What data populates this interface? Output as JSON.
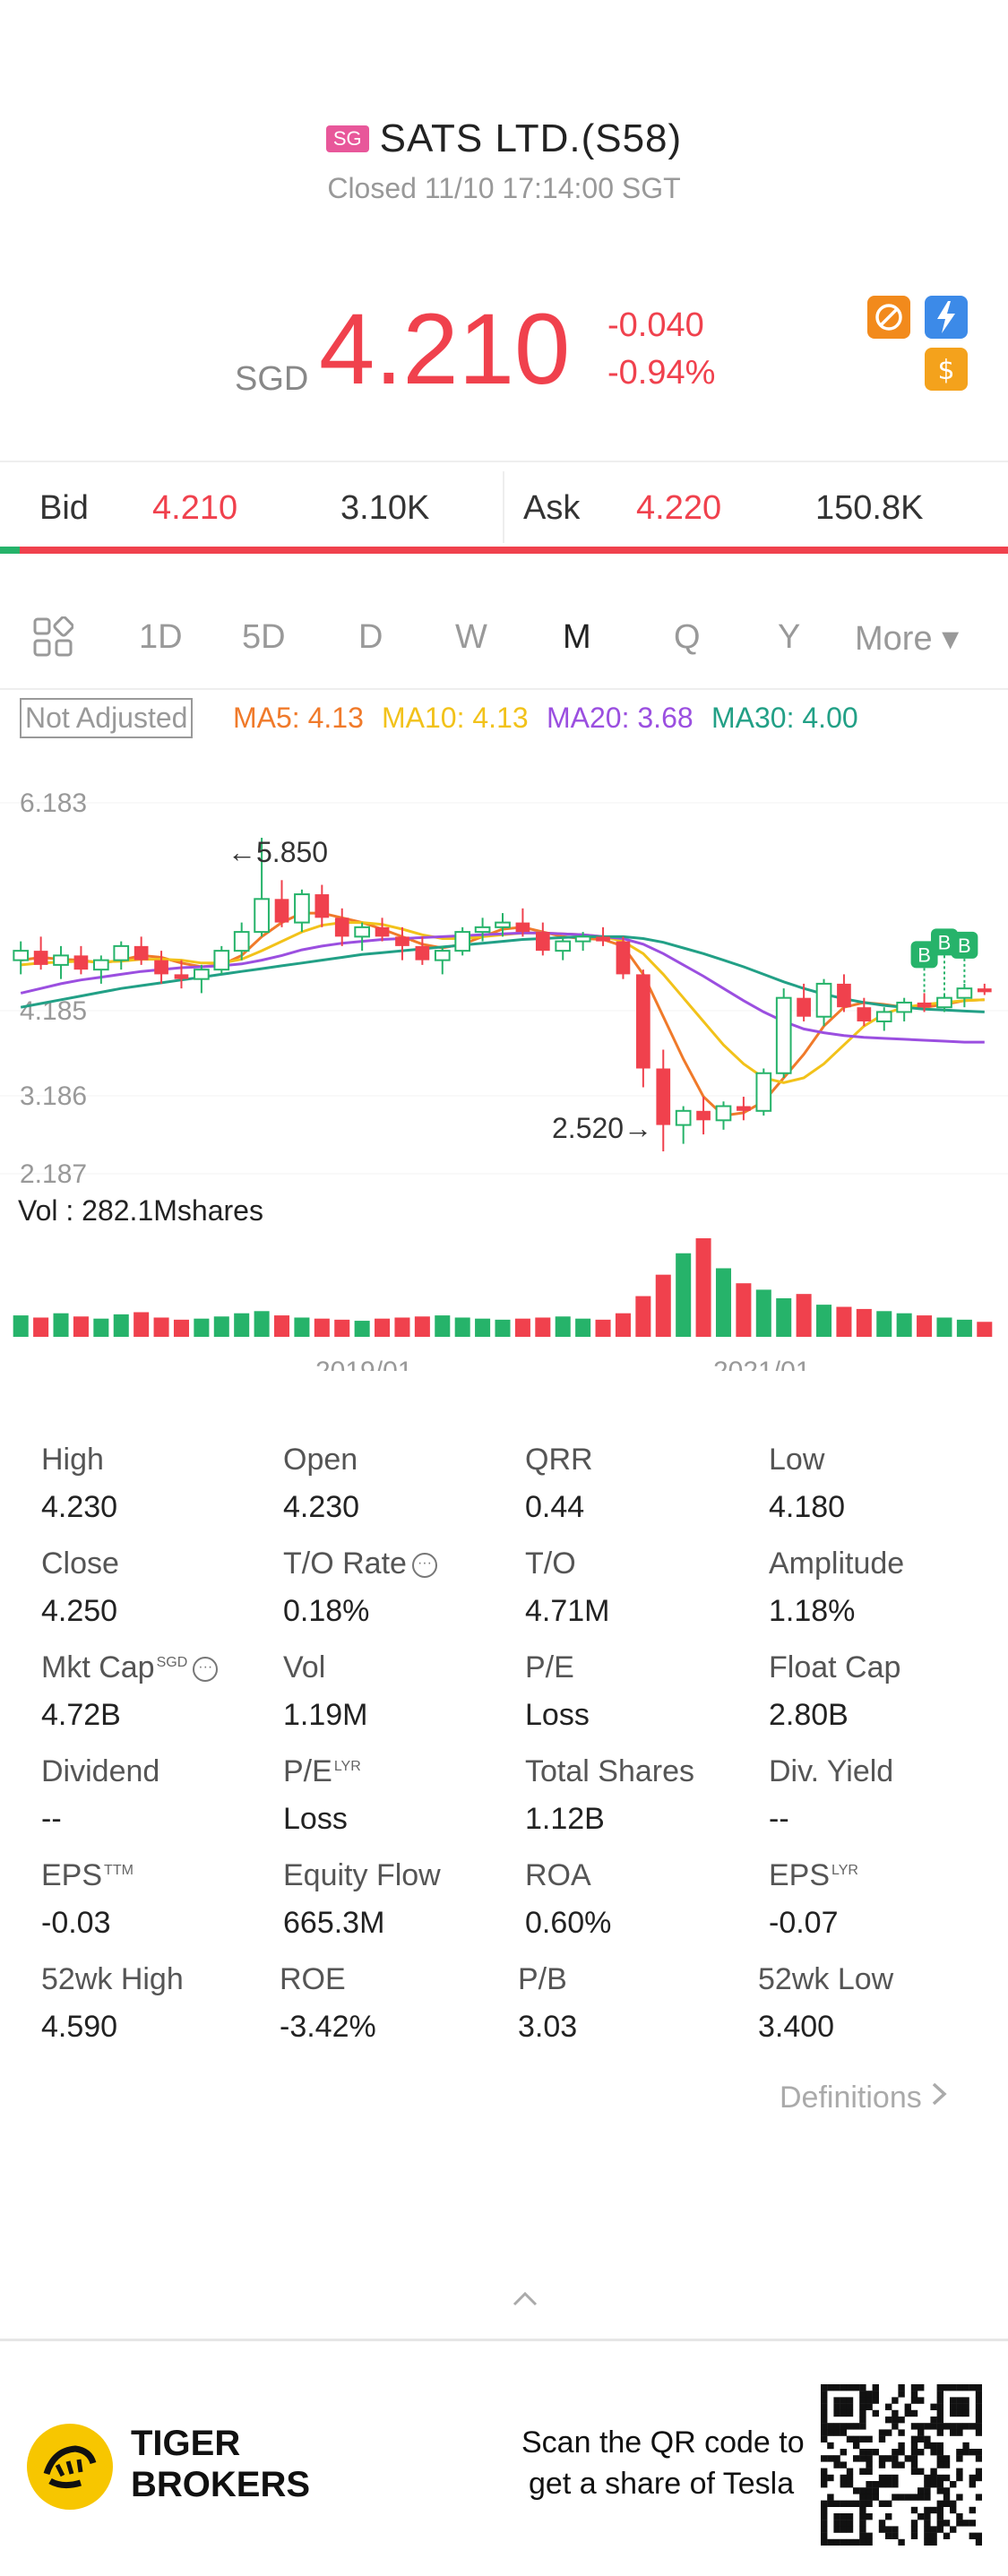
{
  "header": {
    "market_badge": "SG",
    "title": "SATS LTD.(S58)",
    "status": "Closed 11/10 17:14:00 SGT"
  },
  "quote": {
    "currency": "SGD",
    "price": "4.210",
    "change": "-0.040",
    "change_pct": "-0.94%",
    "colors": {
      "down": "#f0414d",
      "up": "#26b36a"
    }
  },
  "bidask": {
    "bid_label": "Bid",
    "bid_price": "4.210",
    "bid_size": "3.10K",
    "ask_label": "Ask",
    "ask_price": "4.220",
    "ask_size": "150.8K"
  },
  "period_tabs": {
    "items": [
      "1D",
      "5D",
      "D",
      "W",
      "M",
      "Q",
      "Y",
      "More ▾"
    ],
    "active": "M"
  },
  "ma_legend": {
    "adjust_label": "Not Adjusted",
    "ma5": "MA5: 4.13",
    "ma10": "MA10: 4.13",
    "ma20": "MA20: 3.68",
    "ma30": "MA30: 4.00",
    "colors": {
      "ma5": "#f07a2a",
      "ma10": "#f2c21a",
      "ma20": "#9b4fe0",
      "ma30": "#22a086"
    }
  },
  "chart_data": {
    "type": "candlestick",
    "y_tick_labels": [
      "6.183",
      "4.185",
      "3.186",
      "2.187"
    ],
    "x_tick_labels": [
      "2019/01",
      "2021/01"
    ],
    "high_annotation": "←5.850",
    "low_annotation": "2.520→",
    "volume_label": "Vol  : 282.1Mshares",
    "marker_label": "B",
    "ylim": [
      2.187,
      6.183
    ],
    "candles": [
      [
        4.55,
        4.75,
        4.4,
        4.65
      ],
      [
        4.65,
        4.8,
        4.45,
        4.5
      ],
      [
        4.5,
        4.7,
        4.35,
        4.6
      ],
      [
        4.6,
        4.7,
        4.4,
        4.45
      ],
      [
        4.45,
        4.6,
        4.3,
        4.55
      ],
      [
        4.55,
        4.75,
        4.45,
        4.7
      ],
      [
        4.7,
        4.8,
        4.5,
        4.55
      ],
      [
        4.55,
        4.65,
        4.3,
        4.4
      ],
      [
        4.4,
        4.55,
        4.25,
        4.35
      ],
      [
        4.35,
        4.5,
        4.2,
        4.45
      ],
      [
        4.45,
        4.7,
        4.4,
        4.65
      ],
      [
        4.65,
        4.95,
        4.55,
        4.85
      ],
      [
        4.85,
        5.85,
        4.8,
        5.2
      ],
      [
        5.2,
        5.4,
        4.9,
        4.95
      ],
      [
        4.95,
        5.3,
        4.85,
        5.25
      ],
      [
        5.25,
        5.35,
        4.9,
        5.0
      ],
      [
        5.0,
        5.1,
        4.7,
        4.8
      ],
      [
        4.8,
        4.95,
        4.65,
        4.9
      ],
      [
        4.9,
        5.0,
        4.75,
        4.8
      ],
      [
        4.8,
        4.9,
        4.55,
        4.7
      ],
      [
        4.7,
        4.8,
        4.5,
        4.55
      ],
      [
        4.55,
        4.7,
        4.4,
        4.65
      ],
      [
        4.65,
        4.9,
        4.6,
        4.85
      ],
      [
        4.85,
        5.0,
        4.75,
        4.9
      ],
      [
        4.9,
        5.05,
        4.8,
        4.95
      ],
      [
        4.95,
        5.1,
        4.8,
        4.85
      ],
      [
        4.85,
        4.95,
        4.6,
        4.65
      ],
      [
        4.65,
        4.8,
        4.55,
        4.75
      ],
      [
        4.75,
        4.85,
        4.65,
        4.8
      ],
      [
        4.8,
        4.9,
        4.7,
        4.75
      ],
      [
        4.75,
        4.8,
        4.35,
        4.4
      ],
      [
        4.4,
        4.45,
        3.2,
        3.4
      ],
      [
        3.4,
        3.6,
        2.52,
        2.8
      ],
      [
        2.8,
        3.0,
        2.6,
        2.95
      ],
      [
        2.95,
        3.1,
        2.7,
        2.85
      ],
      [
        2.85,
        3.05,
        2.75,
        3.0
      ],
      [
        3.0,
        3.1,
        2.85,
        2.95
      ],
      [
        2.95,
        3.4,
        2.9,
        3.35
      ],
      [
        3.35,
        4.25,
        3.3,
        4.15
      ],
      [
        4.15,
        4.3,
        3.9,
        3.95
      ],
      [
        3.95,
        4.35,
        3.85,
        4.3
      ],
      [
        4.3,
        4.4,
        4.0,
        4.05
      ],
      [
        4.05,
        4.15,
        3.85,
        3.9
      ],
      [
        3.9,
        4.05,
        3.8,
        4.0
      ],
      [
        4.0,
        4.15,
        3.9,
        4.1
      ],
      [
        4.1,
        4.2,
        4.0,
        4.05
      ],
      [
        4.05,
        4.2,
        4.0,
        4.15
      ],
      [
        4.15,
        4.3,
        4.05,
        4.25
      ],
      [
        4.25,
        4.3,
        4.18,
        4.21
      ]
    ],
    "ma_series": [
      {
        "name": "MA5",
        "values": [
          4.55,
          4.58,
          4.56,
          4.55,
          4.52,
          4.55,
          4.6,
          4.58,
          4.52,
          4.48,
          4.5,
          4.6,
          4.8,
          4.95,
          5.05,
          5.05,
          5.0,
          4.95,
          4.88,
          4.8,
          4.72,
          4.68,
          4.72,
          4.8,
          4.88,
          4.9,
          4.85,
          4.8,
          4.78,
          4.77,
          4.7,
          4.4,
          3.95,
          3.5,
          3.1,
          2.9,
          2.93,
          3.05,
          3.3,
          3.55,
          3.85,
          4.05,
          4.1,
          4.08,
          4.05,
          4.05,
          4.08,
          4.12,
          4.13
        ]
      },
      {
        "name": "MA10",
        "values": [
          4.5,
          4.52,
          4.53,
          4.54,
          4.53,
          4.54,
          4.56,
          4.56,
          4.55,
          4.52,
          4.52,
          4.56,
          4.65,
          4.75,
          4.85,
          4.92,
          4.95,
          4.95,
          4.93,
          4.88,
          4.82,
          4.78,
          4.78,
          4.8,
          4.82,
          4.84,
          4.84,
          4.83,
          4.82,
          4.8,
          4.75,
          4.62,
          4.4,
          4.15,
          3.9,
          3.65,
          3.45,
          3.3,
          3.25,
          3.3,
          3.45,
          3.65,
          3.85,
          3.98,
          4.05,
          4.08,
          4.1,
          4.12,
          4.13
        ]
      },
      {
        "name": "MA20",
        "values": [
          4.2,
          4.25,
          4.3,
          4.34,
          4.37,
          4.4,
          4.43,
          4.45,
          4.47,
          4.48,
          4.49,
          4.51,
          4.55,
          4.6,
          4.66,
          4.7,
          4.73,
          4.75,
          4.77,
          4.78,
          4.79,
          4.8,
          4.81,
          4.82,
          4.83,
          4.84,
          4.84,
          4.83,
          4.82,
          4.8,
          4.78,
          4.72,
          4.62,
          4.5,
          4.38,
          4.25,
          4.12,
          4.0,
          3.9,
          3.82,
          3.78,
          3.75,
          3.73,
          3.72,
          3.71,
          3.7,
          3.69,
          3.68,
          3.68
        ]
      },
      {
        "name": "MA30",
        "values": [
          4.05,
          4.09,
          4.13,
          4.17,
          4.21,
          4.25,
          4.28,
          4.31,
          4.34,
          4.37,
          4.4,
          4.43,
          4.46,
          4.49,
          4.52,
          4.55,
          4.58,
          4.61,
          4.63,
          4.65,
          4.67,
          4.69,
          4.71,
          4.73,
          4.75,
          4.77,
          4.78,
          4.79,
          4.8,
          4.8,
          4.8,
          4.78,
          4.74,
          4.68,
          4.62,
          4.55,
          4.48,
          4.4,
          4.32,
          4.25,
          4.19,
          4.14,
          4.1,
          4.07,
          4.05,
          4.03,
          4.02,
          4.01,
          4.0
        ]
      }
    ],
    "volume": [
      20,
      18,
      22,
      19,
      17,
      21,
      23,
      18,
      16,
      17,
      19,
      22,
      24,
      20,
      18,
      17,
      16,
      15,
      17,
      18,
      19,
      20,
      18,
      17,
      16,
      17,
      18,
      19,
      17,
      16,
      22,
      38,
      58,
      78,
      92,
      64,
      50,
      44,
      36,
      40,
      30,
      28,
      26,
      24,
      22,
      20,
      18,
      16,
      14
    ]
  },
  "stats": [
    {
      "label": "High",
      "value": "4.230"
    },
    {
      "label": "Open",
      "value": "4.230"
    },
    {
      "label": "QRR",
      "value": "0.44"
    },
    {
      "label": "Low",
      "value": "4.180"
    },
    {
      "label": "Close",
      "value": "4.250"
    },
    {
      "label": "T/O Rate",
      "value": "0.18%"
    },
    {
      "label": "T/O",
      "value": "4.71M"
    },
    {
      "label": "Amplitude",
      "value": "1.18%"
    },
    {
      "label": "Mkt Cap",
      "value": "4.72B",
      "sup": "SGD"
    },
    {
      "label": "Vol",
      "value": "1.19M"
    },
    {
      "label": "P/E",
      "value": "Loss"
    },
    {
      "label": "Float Cap",
      "value": "2.80B"
    },
    {
      "label": "Dividend",
      "value": "--"
    },
    {
      "label": "P/E",
      "value": "Loss",
      "sup": "LYR"
    },
    {
      "label": "Total Shares",
      "value": "1.12B"
    },
    {
      "label": "Div. Yield",
      "value": "--"
    },
    {
      "label": "EPS",
      "value": "-0.03",
      "sup": "TTM"
    },
    {
      "label": "Equity Flow",
      "value": "665.3M"
    },
    {
      "label": "ROA",
      "value": "0.60%"
    },
    {
      "label": "EPS",
      "value": "-0.07",
      "sup": "LYR"
    },
    {
      "label": "52wk High",
      "value": "4.590"
    },
    {
      "label": "ROE",
      "value": "-3.42%"
    },
    {
      "label": "P/B",
      "value": "3.03"
    },
    {
      "label": "52wk Low",
      "value": "3.400"
    }
  ],
  "definitions_label": "Definitions",
  "footer": {
    "brand_line1": "TIGER",
    "brand_line2": "BROKERS",
    "qr_line1": "Scan the QR code to",
    "qr_line2": "get a share of Tesla"
  }
}
